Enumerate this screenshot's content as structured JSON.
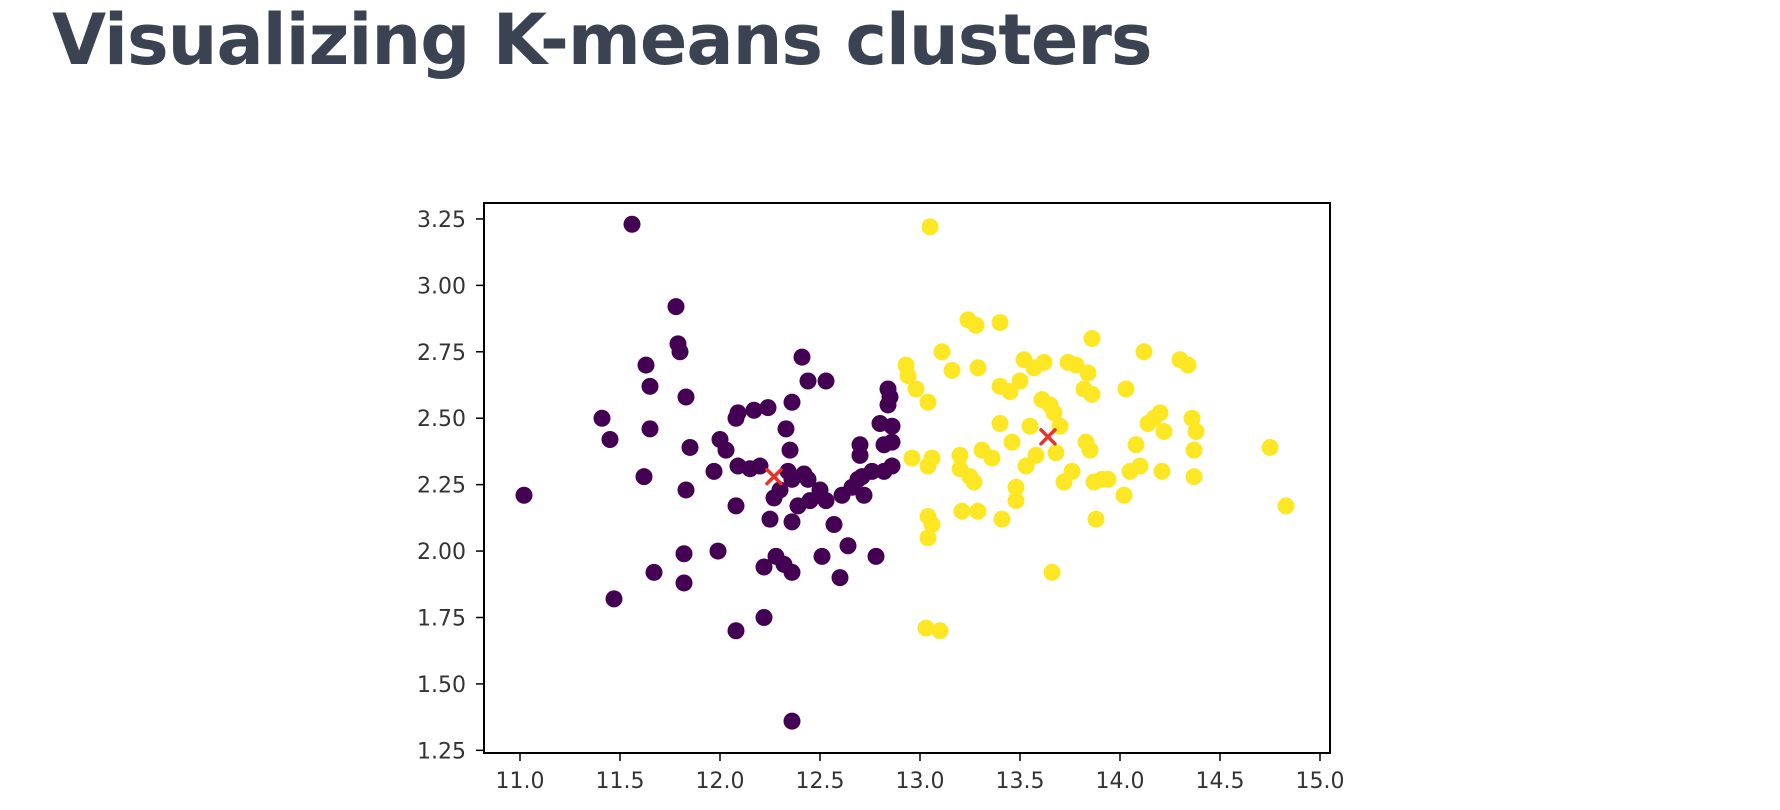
{
  "slide": {
    "title": "Visualizing K-means clusters"
  },
  "chart_data": {
    "type": "scatter",
    "title": "",
    "xlabel": "",
    "ylabel": "",
    "xlim": [
      10.82,
      15.05
    ],
    "ylim": [
      1.24,
      3.31
    ],
    "x_ticks": [
      11.0,
      11.5,
      12.0,
      12.5,
      13.0,
      13.5,
      14.0,
      14.5,
      15.0
    ],
    "x_tick_labels": [
      "11.0",
      "11.5",
      "12.0",
      "12.5",
      "13.0",
      "13.5",
      "14.0",
      "14.5",
      "15.0"
    ],
    "y_ticks": [
      1.25,
      1.5,
      1.75,
      2.0,
      2.25,
      2.5,
      2.75,
      3.0,
      3.25
    ],
    "y_tick_labels": [
      "1.25",
      "1.50",
      "1.75",
      "2.00",
      "2.25",
      "2.50",
      "2.75",
      "3.00",
      "3.25"
    ],
    "grid": false,
    "legend": "none",
    "colors": {
      "cluster_0": "#440154",
      "cluster_1": "#fde725",
      "centroid": "#e8322a",
      "axis": "#000000"
    },
    "series": [
      {
        "color": "#440154",
        "marker": "circle",
        "points": [
          [
            11.02,
            2.21
          ],
          [
            11.56,
            3.23
          ],
          [
            11.78,
            2.92
          ],
          [
            11.79,
            2.78
          ],
          [
            11.8,
            2.75
          ],
          [
            11.63,
            2.7
          ],
          [
            11.65,
            2.62
          ],
          [
            11.83,
            2.58
          ],
          [
            11.41,
            2.5
          ],
          [
            11.45,
            2.42
          ],
          [
            11.65,
            2.46
          ],
          [
            11.85,
            2.39
          ],
          [
            11.62,
            2.28
          ],
          [
            11.83,
            2.23
          ],
          [
            11.47,
            1.82
          ],
          [
            11.67,
            1.92
          ],
          [
            11.82,
            1.99
          ],
          [
            11.82,
            1.88
          ],
          [
            11.99,
            2.0
          ],
          [
            12.0,
            2.42
          ],
          [
            12.03,
            2.38
          ],
          [
            11.97,
            2.3
          ],
          [
            12.08,
            2.5
          ],
          [
            12.09,
            2.52
          ],
          [
            12.17,
            2.53
          ],
          [
            12.24,
            2.54
          ],
          [
            12.09,
            2.32
          ],
          [
            12.15,
            2.31
          ],
          [
            12.2,
            2.32
          ],
          [
            12.08,
            2.17
          ],
          [
            12.08,
            1.7
          ],
          [
            12.22,
            1.75
          ],
          [
            12.22,
            1.94
          ],
          [
            12.28,
            1.98
          ],
          [
            12.32,
            1.95
          ],
          [
            12.36,
            1.92
          ],
          [
            12.36,
            1.36
          ],
          [
            12.33,
            2.46
          ],
          [
            12.36,
            2.56
          ],
          [
            12.41,
            2.73
          ],
          [
            12.44,
            2.64
          ],
          [
            12.53,
            2.64
          ],
          [
            12.35,
            2.38
          ],
          [
            12.34,
            2.3
          ],
          [
            12.36,
            2.27
          ],
          [
            12.42,
            2.29
          ],
          [
            12.44,
            2.27
          ],
          [
            12.3,
            2.23
          ],
          [
            12.27,
            2.2
          ],
          [
            12.25,
            2.12
          ],
          [
            12.36,
            2.11
          ],
          [
            12.39,
            2.17
          ],
          [
            12.45,
            2.19
          ],
          [
            12.5,
            2.23
          ],
          [
            12.53,
            2.19
          ],
          [
            12.57,
            2.1
          ],
          [
            12.61,
            2.21
          ],
          [
            12.64,
            2.02
          ],
          [
            12.6,
            1.9
          ],
          [
            12.51,
            1.98
          ],
          [
            12.66,
            2.24
          ],
          [
            12.69,
            2.27
          ],
          [
            12.71,
            2.28
          ],
          [
            12.7,
            2.36
          ],
          [
            12.7,
            2.4
          ],
          [
            12.72,
            2.21
          ],
          [
            12.76,
            2.3
          ],
          [
            12.8,
            2.48
          ],
          [
            12.78,
            1.98
          ],
          [
            12.82,
            2.4
          ],
          [
            12.84,
            2.55
          ],
          [
            12.85,
            2.58
          ],
          [
            12.84,
            2.61
          ],
          [
            12.86,
            2.47
          ],
          [
            12.86,
            2.41
          ],
          [
            12.82,
            2.3
          ],
          [
            12.86,
            2.32
          ]
        ]
      },
      {
        "color": "#fde725",
        "marker": "circle",
        "points": [
          [
            13.05,
            3.22
          ],
          [
            12.93,
            2.7
          ],
          [
            12.94,
            2.66
          ],
          [
            12.98,
            2.61
          ],
          [
            13.04,
            2.56
          ],
          [
            12.96,
            2.35
          ],
          [
            13.04,
            2.32
          ],
          [
            13.06,
            2.35
          ],
          [
            13.04,
            2.13
          ],
          [
            13.06,
            2.1
          ],
          [
            13.04,
            2.05
          ],
          [
            13.03,
            1.71
          ],
          [
            13.1,
            1.7
          ],
          [
            13.11,
            2.75
          ],
          [
            13.16,
            2.68
          ],
          [
            13.2,
            2.36
          ],
          [
            13.2,
            2.31
          ],
          [
            13.25,
            2.28
          ],
          [
            13.27,
            2.26
          ],
          [
            13.21,
            2.15
          ],
          [
            13.29,
            2.15
          ],
          [
            13.24,
            2.87
          ],
          [
            13.28,
            2.85
          ],
          [
            13.29,
            2.69
          ],
          [
            13.31,
            2.38
          ],
          [
            13.36,
            2.35
          ],
          [
            13.4,
            2.86
          ],
          [
            13.4,
            2.62
          ],
          [
            13.45,
            2.6
          ],
          [
            13.5,
            2.64
          ],
          [
            13.52,
            2.72
          ],
          [
            13.57,
            2.69
          ],
          [
            13.62,
            2.71
          ],
          [
            13.4,
            2.48
          ],
          [
            13.46,
            2.41
          ],
          [
            13.48,
            2.24
          ],
          [
            13.48,
            2.19
          ],
          [
            13.41,
            2.12
          ],
          [
            13.55,
            2.47
          ],
          [
            13.53,
            2.32
          ],
          [
            13.58,
            2.36
          ],
          [
            13.61,
            2.57
          ],
          [
            13.65,
            2.55
          ],
          [
            13.67,
            2.52
          ],
          [
            13.7,
            2.47
          ],
          [
            13.68,
            2.37
          ],
          [
            13.72,
            2.26
          ],
          [
            13.76,
            2.3
          ],
          [
            13.66,
            1.92
          ],
          [
            13.74,
            2.71
          ],
          [
            13.78,
            2.7
          ],
          [
            13.82,
            2.61
          ],
          [
            13.84,
            2.67
          ],
          [
            13.86,
            2.59
          ],
          [
            13.83,
            2.41
          ],
          [
            13.85,
            2.38
          ],
          [
            13.87,
            2.26
          ],
          [
            13.91,
            2.27
          ],
          [
            13.94,
            2.27
          ],
          [
            13.88,
            2.12
          ],
          [
            13.86,
            2.8
          ],
          [
            14.03,
            2.61
          ],
          [
            14.08,
            2.4
          ],
          [
            14.05,
            2.3
          ],
          [
            14.1,
            2.32
          ],
          [
            14.12,
            2.75
          ],
          [
            14.02,
            2.21
          ],
          [
            14.14,
            2.48
          ],
          [
            14.17,
            2.5
          ],
          [
            14.2,
            2.52
          ],
          [
            14.22,
            2.45
          ],
          [
            14.21,
            2.3
          ],
          [
            14.3,
            2.72
          ],
          [
            14.34,
            2.7
          ],
          [
            14.36,
            2.5
          ],
          [
            14.38,
            2.45
          ],
          [
            14.37,
            2.38
          ],
          [
            14.37,
            2.28
          ],
          [
            14.75,
            2.39
          ],
          [
            14.83,
            2.17
          ]
        ]
      },
      {
        "color": "#e8322a",
        "marker": "x",
        "points": [
          [
            12.27,
            2.28
          ],
          [
            13.64,
            2.43
          ]
        ]
      }
    ]
  }
}
